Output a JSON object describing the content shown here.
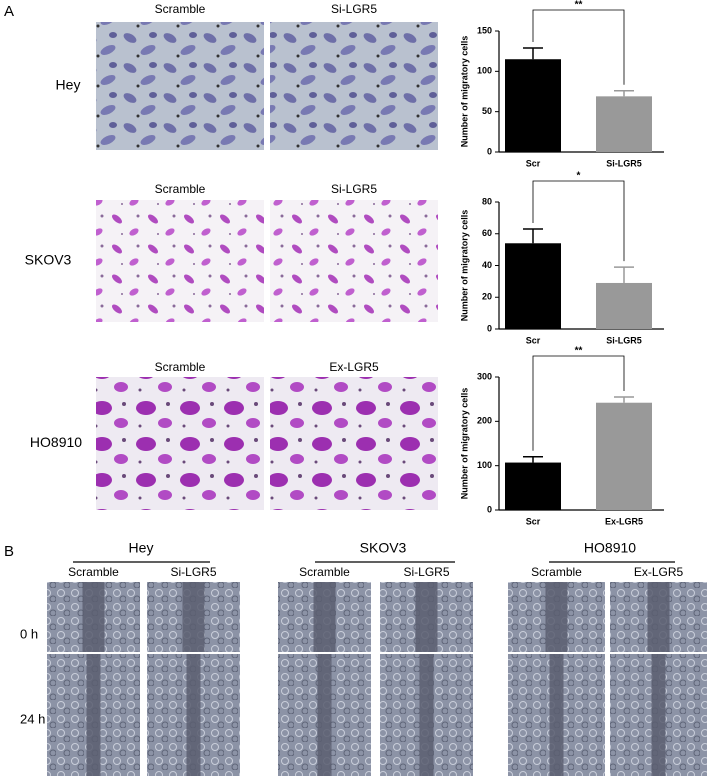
{
  "panel_a": {
    "label": "A",
    "rows": [
      {
        "name": "Hey",
        "conditions": [
          "Scramble",
          "Si-LGR5"
        ]
      },
      {
        "name": "SKOV3",
        "conditions": [
          "Scramble",
          "Si-LGR5"
        ]
      },
      {
        "name": "HO8910",
        "conditions": [
          "Scramble",
          "Ex-LGR5"
        ]
      }
    ]
  },
  "panel_b": {
    "label": "B",
    "timepoints": [
      "0 h",
      "24 h"
    ],
    "groups": [
      {
        "name": "Hey",
        "conditions": [
          "Scramble",
          "Si-LGR5"
        ]
      },
      {
        "name": "SKOV3",
        "conditions": [
          "Scramble",
          "Si-LGR5"
        ]
      },
      {
        "name": "HO8910",
        "conditions": [
          "Scramble",
          "Ex-LGR5"
        ]
      }
    ]
  },
  "chart_data": [
    {
      "type": "bar",
      "ylabel": "Number of  migratory cells",
      "categories": [
        "Scr",
        "Si-LGR5"
      ],
      "values": [
        115,
        69
      ],
      "errors": [
        14,
        7
      ],
      "colors": [
        "#000000",
        "#999999"
      ],
      "ylim": [
        0,
        150
      ],
      "yticks": [
        0,
        50,
        100,
        150
      ],
      "significance": "**"
    },
    {
      "type": "bar",
      "ylabel": "Number of  migratory cells",
      "categories": [
        "Scr",
        "Si-LGR5"
      ],
      "values": [
        54,
        29
      ],
      "errors": [
        9,
        10
      ],
      "colors": [
        "#000000",
        "#999999"
      ],
      "ylim": [
        0,
        80
      ],
      "yticks": [
        0,
        20,
        40,
        60,
        80
      ],
      "significance": "*"
    },
    {
      "type": "bar",
      "ylabel": "Number of  migratory cells",
      "categories": [
        "Scr",
        "Ex-LGR5"
      ],
      "values": [
        107,
        242
      ],
      "errors": [
        13,
        13
      ],
      "colors": [
        "#000000",
        "#999999"
      ],
      "ylim": [
        0,
        300
      ],
      "yticks": [
        0,
        100,
        200,
        300
      ],
      "significance": "**"
    }
  ]
}
